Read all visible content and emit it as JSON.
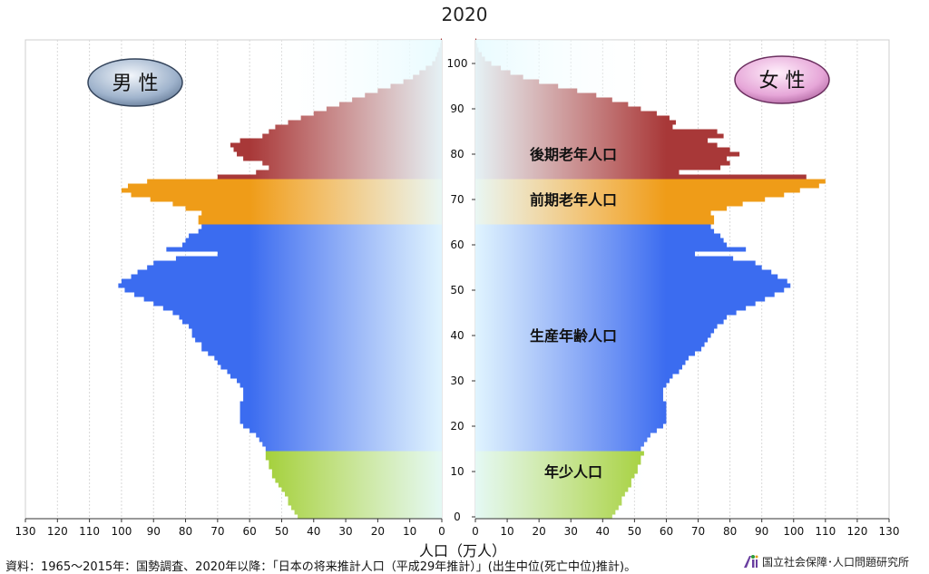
{
  "chart_data": {
    "type": "bar",
    "title": "2020",
    "xlabel": "人口（万人）",
    "male_label": "男 性",
    "female_label": "女 性",
    "x_ticks": [
      130,
      120,
      110,
      100,
      90,
      80,
      70,
      60,
      50,
      40,
      30,
      20,
      10,
      0
    ],
    "female_x_ticks": [
      0,
      10,
      20,
      30,
      40,
      50,
      60,
      70,
      80,
      90,
      100,
      110,
      120,
      130
    ],
    "y_ticks": [
      0,
      10,
      20,
      30,
      40,
      50,
      60,
      70,
      80,
      90,
      100
    ],
    "xlim": [
      0,
      130
    ],
    "ylim": [
      0,
      105
    ],
    "groups": [
      {
        "name": "年少人口",
        "from_age": 0,
        "to_age": 14,
        "color": "#9ccc2a"
      },
      {
        "name": "生産年齢人口",
        "from_age": 15,
        "to_age": 64,
        "color": "#3b6cf0"
      },
      {
        "name": "前期老年人口",
        "from_age": 65,
        "to_age": 74,
        "color": "#ef9c18"
      },
      {
        "name": "後期老年人口",
        "from_age": 75,
        "to_age": 105,
        "color": "#a83838"
      }
    ],
    "group_label_ages": [
      10,
      40,
      70,
      80
    ],
    "series": [
      {
        "name": "男 性",
        "values": [
          45,
          46,
          47,
          48,
          48,
          49,
          50,
          51,
          52,
          53,
          53,
          54,
          54,
          55,
          55,
          55,
          56,
          57,
          58,
          60,
          62,
          63,
          63,
          63,
          63,
          63,
          62,
          62,
          62,
          63,
          64,
          66,
          67,
          69,
          70,
          71,
          73,
          75,
          75,
          77,
          78,
          78,
          79,
          81,
          82,
          84,
          87,
          90,
          93,
          96,
          99,
          101,
          100,
          97,
          95,
          92,
          90,
          83,
          70,
          86,
          81,
          80,
          79,
          76,
          75,
          76,
          76,
          75,
          80,
          84,
          91,
          97,
          100,
          98,
          92,
          70,
          58,
          54,
          56,
          62,
          64,
          65,
          66,
          63,
          56,
          54,
          52,
          48,
          44,
          40,
          36,
          32,
          28,
          24,
          20,
          16,
          12,
          9,
          7,
          5,
          3,
          2,
          1.5,
          1,
          0.5,
          0.3
        ]
      },
      {
        "name": "女 性",
        "values": [
          43,
          44,
          45,
          46,
          46,
          47,
          48,
          49,
          49,
          50,
          51,
          51,
          52,
          52,
          53,
          52,
          53,
          54,
          55,
          57,
          59,
          60,
          60,
          60,
          60,
          60,
          59,
          59,
          59,
          60,
          61,
          62,
          64,
          65,
          66,
          67,
          69,
          71,
          72,
          73,
          74,
          75,
          76,
          78,
          79,
          82,
          85,
          88,
          91,
          94,
          97,
          99,
          98,
          95,
          93,
          90,
          88,
          81,
          69,
          85,
          79,
          78,
          77,
          75,
          74,
          75,
          75,
          74,
          79,
          84,
          91,
          97,
          102,
          108,
          110,
          104,
          64,
          77,
          80,
          79,
          83,
          80,
          76,
          73,
          78,
          76,
          62,
          63,
          61,
          57,
          52,
          48,
          43,
          38,
          32,
          26,
          20,
          15,
          11,
          8,
          5,
          3,
          2,
          1,
          0.6,
          0.3
        ]
      }
    ]
  },
  "source": "資料：1965〜2015年：国勢調査、2020年以降：「日本の将来推計人口（平成29年推計）」(出生中位(死亡中位)推計)。",
  "org_name": "国立社会保障･人口問題研究所"
}
